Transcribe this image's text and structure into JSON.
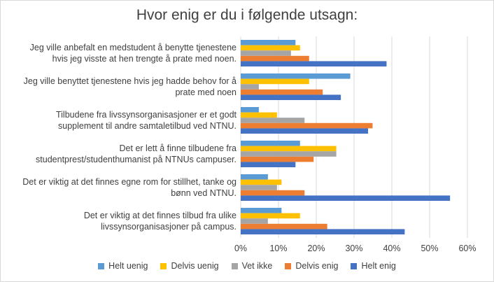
{
  "chart_data": {
    "type": "bar",
    "orientation": "horizontal",
    "title": "Hvor enig er du i følgende utsagn:",
    "categories": [
      "Jeg ville anbefalt en medstudent å benytte tjenestene hvis jeg visste at hen trengte å prate med noen.",
      "Jeg ville benyttet tjenestene hvis jeg hadde behov for å prate med noen",
      "Tilbudene fra livssynsorganisasjoner er et godt supplement til andre samtaletilbud ved NTNU.",
      "Det er lett å finne tilbudene fra studentprest/studenthumanist på NTNUs campuser.",
      "Det er viktig at det finnes egne rom for stillhet, tanke og bønn ved NTNU.",
      "Det er viktig at det finnes tilbud fra ulike livssynsorganisasjoner på campus."
    ],
    "category_lines": [
      [
        "Jeg ville anbefalt en medstudent å benytte tjenestene",
        "hvis jeg visste at hen trengte å prate med noen."
      ],
      [
        "Jeg ville benyttet tjenestene hvis jeg hadde behov for å",
        "prate med noen"
      ],
      [
        "Tilbudene fra livssynsorganisasjoner er et godt",
        "supplement til andre samtaletilbud ved NTNU."
      ],
      [
        "Det er lett å finne tilbudene fra",
        "studentprest/studenthumanist på NTNUs campuser."
      ],
      [
        "Det er viktig at det finnes egne rom for stillhet, tanke og",
        "bønn ved NTNU."
      ],
      [
        "Det er viktig at det finnes tilbud fra ulike",
        "livssynsorganisasjoner på campus."
      ]
    ],
    "series": [
      {
        "name": "Helt uenig",
        "color": "#5b9bd5",
        "values": [
          14.5,
          29.0,
          4.8,
          15.7,
          7.2,
          10.8
        ]
      },
      {
        "name": "Delvis uenig",
        "color": "#ffc000",
        "values": [
          15.7,
          18.1,
          9.6,
          25.3,
          10.8,
          15.7
        ]
      },
      {
        "name": "Vet ikke",
        "color": "#a5a5a5",
        "values": [
          13.3,
          4.8,
          16.9,
          25.3,
          9.6,
          7.2
        ]
      },
      {
        "name": "Delvis enig",
        "color": "#ed7d31",
        "values": [
          18.1,
          21.7,
          34.9,
          19.3,
          16.9,
          22.9
        ]
      },
      {
        "name": "Helt enig",
        "color": "#4472c4",
        "values": [
          38.6,
          26.5,
          33.7,
          14.5,
          55.4,
          43.4
        ]
      }
    ],
    "xlim": [
      0,
      60
    ],
    "xticks": [
      "0%",
      "10%",
      "20%",
      "30%",
      "40%",
      "50%",
      "60%"
    ],
    "xtick_values": [
      0,
      10,
      20,
      30,
      40,
      50,
      60
    ],
    "grid": true,
    "legend_position": "bottom"
  }
}
